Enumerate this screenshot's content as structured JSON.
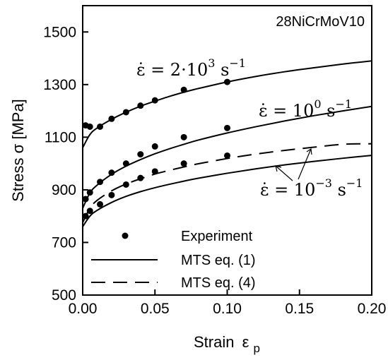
{
  "chart_data": {
    "type": "scatter",
    "title": "",
    "material_label": "28NiCrMoV10",
    "xlabel": "Strain",
    "xlabel_symbol": "ε",
    "xlabel_sub": "p",
    "ylabel": "Stress σ [MPa]",
    "xlim": [
      0.0,
      0.2
    ],
    "ylim": [
      500,
      1600
    ],
    "x_ticks": [
      "0.00",
      "0.05",
      "0.10",
      "0.15",
      "0.20"
    ],
    "y_ticks": [
      "500",
      "700",
      "900",
      "1100",
      "1300",
      "1500"
    ],
    "grid": false,
    "legend_position": "bottom-left",
    "legend": [
      {
        "label": "Experiment",
        "marker": "dot"
      },
      {
        "label": "MTS eq. (1)",
        "style": "solid"
      },
      {
        "label": "MTS eq. (4)",
        "style": "dashed"
      }
    ],
    "annotations": {
      "rate_high": {
        "lhs": "ε̇ = 2·10",
        "exp": "3",
        "unit": " s",
        "unit_exp": "−1"
      },
      "rate_mid": {
        "lhs": "ε̇ = 10",
        "exp": "0",
        "unit": " s",
        "unit_exp": "−1"
      },
      "rate_low": {
        "lhs": "ε̇ = 10",
        "exp": "−3",
        "unit": " s",
        "unit_exp": "−1"
      }
    },
    "series": [
      {
        "rate": "2·10^3 s^-1",
        "kind": "experiment",
        "x": [
          0.002,
          0.005,
          0.012,
          0.02,
          0.03,
          0.04,
          0.05,
          0.07,
          0.1
        ],
        "y": [
          1145,
          1140,
          1140,
          1170,
          1195,
          1220,
          1240,
          1280,
          1310
        ]
      },
      {
        "rate": "2·10^3 s^-1",
        "kind": "MTS eq. (1)",
        "x": [
          0.0,
          0.005,
          0.01,
          0.02,
          0.03,
          0.04,
          0.05,
          0.06,
          0.07,
          0.08,
          0.1,
          0.12,
          0.14,
          0.16,
          0.18,
          0.2
        ],
        "y": [
          1060,
          1110,
          1135,
          1168,
          1195,
          1218,
          1237,
          1255,
          1271,
          1285,
          1310,
          1331,
          1349,
          1364,
          1378,
          1390
        ]
      },
      {
        "rate": "10^0 s^-1",
        "kind": "experiment",
        "x": [
          0.002,
          0.005,
          0.012,
          0.02,
          0.03,
          0.04,
          0.05,
          0.07,
          0.1
        ],
        "y": [
          865,
          890,
          930,
          965,
          1000,
          1035,
          1065,
          1100,
          1135
        ]
      },
      {
        "rate": "10^0 s^-1",
        "kind": "MTS eq. (1)",
        "x": [
          0.0,
          0.005,
          0.01,
          0.02,
          0.03,
          0.04,
          0.05,
          0.06,
          0.07,
          0.08,
          0.1,
          0.12,
          0.14,
          0.16,
          0.18,
          0.2
        ],
        "y": [
          830,
          888,
          918,
          959,
          990,
          1015,
          1037,
          1056,
          1073,
          1089,
          1116,
          1140,
          1162,
          1182,
          1200,
          1217
        ]
      },
      {
        "rate": "10^-3 s^-1",
        "kind": "experiment",
        "x": [
          0.002,
          0.005,
          0.012,
          0.02,
          0.03,
          0.04,
          0.05,
          0.07,
          0.1
        ],
        "y": [
          800,
          820,
          845,
          880,
          920,
          945,
          970,
          1000,
          1030
        ]
      },
      {
        "rate": "10^-3 s^-1",
        "kind": "MTS eq. (1)",
        "x": [
          0.0,
          0.005,
          0.01,
          0.02,
          0.03,
          0.04,
          0.05,
          0.06,
          0.07,
          0.08,
          0.1,
          0.12,
          0.14,
          0.16,
          0.18,
          0.2
        ],
        "y": [
          760,
          800,
          822,
          852,
          875,
          893,
          908,
          921,
          933,
          944,
          963,
          980,
          995,
          1008,
          1020,
          1031
        ]
      },
      {
        "rate": "10^-3 s^-1",
        "kind": "MTS eq. (4)",
        "x": [
          0.0,
          0.005,
          0.01,
          0.02,
          0.03,
          0.04,
          0.05,
          0.06,
          0.07,
          0.08,
          0.1,
          0.12,
          0.14,
          0.16,
          0.18,
          0.2
        ],
        "y": [
          775,
          830,
          860,
          896,
          922,
          942,
          960,
          974,
          987,
          999,
          1019,
          1036,
          1050,
          1062,
          1073,
          1075
        ]
      }
    ]
  }
}
